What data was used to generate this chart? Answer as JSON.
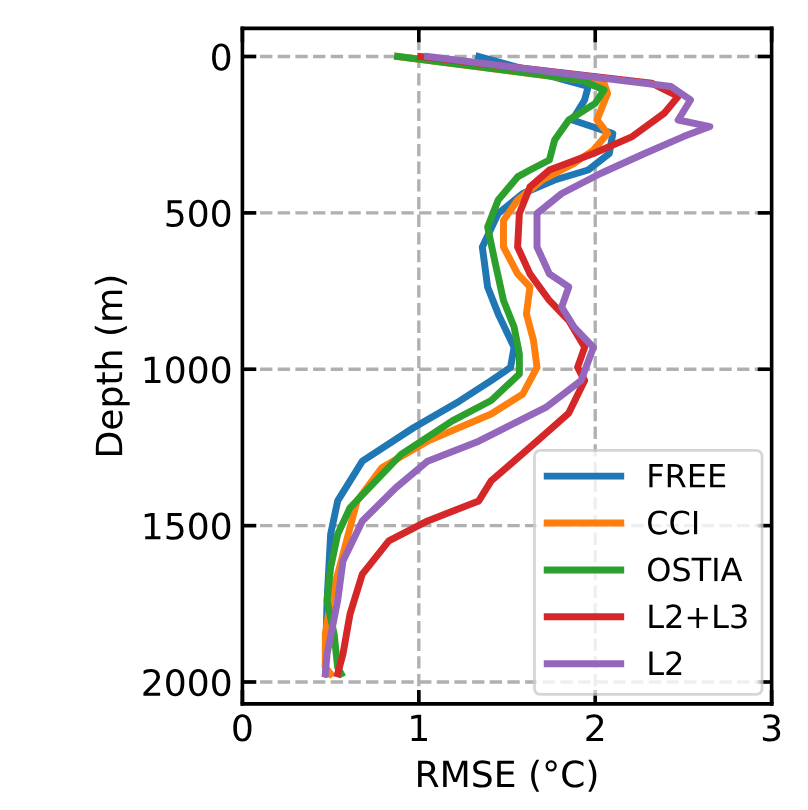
{
  "chart_data": {
    "type": "line",
    "xlabel": "RMSE (°C)",
    "ylabel": "Depth (m)",
    "xlim": [
      0,
      3
    ],
    "xticks": [
      0,
      1,
      2,
      3
    ],
    "ylim": [
      2070,
      -90
    ],
    "yticks": [
      0,
      500,
      1000,
      1500,
      2000
    ],
    "grid": true,
    "legend": "bottom right",
    "series": [
      {
        "name": "FREE",
        "color": "#1f77b4",
        "x": [
          1.34,
          1.96,
          1.94,
          1.87,
          2.1,
          2.08,
          1.96,
          1.77,
          1.59,
          1.45,
          1.36,
          1.39,
          1.45,
          1.54,
          1.52,
          1.41,
          1.23,
          0.97,
          0.68,
          0.54,
          0.5,
          0.48,
          0.47,
          0.48
        ],
        "values": [
          0,
          96,
          139,
          203,
          246,
          310,
          363,
          395,
          438,
          502,
          609,
          737,
          823,
          930,
          994,
          1036,
          1102,
          1187,
          1294,
          1421,
          1528,
          1740,
          1953,
          1974
        ]
      },
      {
        "name": "CCI",
        "color": "#ff7f0e",
        "x": [
          0.88,
          2.05,
          2.07,
          2.01,
          2.07,
          1.99,
          1.88,
          1.7,
          1.56,
          1.48,
          1.48,
          1.56,
          1.63,
          1.61,
          1.65,
          1.67,
          1.59,
          1.41,
          1.05,
          0.79,
          0.65,
          0.57,
          0.5,
          0.47,
          0.47,
          0.5
        ],
        "values": [
          0,
          85,
          118,
          203,
          246,
          299,
          342,
          395,
          459,
          524,
          609,
          695,
          737,
          823,
          908,
          994,
          1079,
          1143,
          1230,
          1315,
          1421,
          1592,
          1740,
          1847,
          1953,
          1974
        ]
      },
      {
        "name": "OSTIA",
        "color": "#2ca02c",
        "x": [
          0.88,
          1.92,
          2.05,
          2.0,
          1.85,
          1.77,
          1.74,
          1.63,
          1.56,
          1.45,
          1.39,
          1.43,
          1.48,
          1.54,
          1.57,
          1.57,
          1.41,
          1.19,
          0.9,
          0.61,
          0.54,
          0.5,
          0.48,
          0.52,
          0.54,
          0.56
        ],
        "values": [
          0,
          75,
          107,
          150,
          203,
          267,
          331,
          363,
          385,
          459,
          545,
          652,
          780,
          865,
          951,
          1015,
          1100,
          1165,
          1272,
          1443,
          1528,
          1634,
          1740,
          1847,
          1953,
          1974
        ]
      },
      {
        "name": "L2+L3",
        "color": "#d62728",
        "x": [
          1.01,
          2.32,
          2.47,
          2.39,
          2.21,
          1.99,
          1.74,
          1.63,
          1.57,
          1.56,
          1.63,
          1.74,
          1.85,
          1.94,
          1.9,
          1.94,
          1.85,
          1.67,
          1.41,
          1.34,
          1.05,
          0.83,
          0.68,
          0.61,
          0.57,
          0.54
        ],
        "values": [
          0,
          85,
          128,
          182,
          256,
          310,
          363,
          417,
          502,
          609,
          695,
          780,
          844,
          930,
          994,
          1036,
          1140,
          1230,
          1357,
          1421,
          1485,
          1549,
          1655,
          1783,
          1911,
          1974
        ]
      },
      {
        "name": "L2",
        "color": "#9467bd",
        "x": [
          1.05,
          2.43,
          2.54,
          2.47,
          2.65,
          2.5,
          2.28,
          2.03,
          1.81,
          1.67,
          1.67,
          1.74,
          1.85,
          1.81,
          1.88,
          1.99,
          1.92,
          1.72,
          1.34,
          1.05,
          0.87,
          0.68,
          0.57,
          0.54,
          0.48,
          0.47
        ],
        "values": [
          0,
          96,
          139,
          203,
          224,
          256,
          310,
          374,
          438,
          502,
          609,
          695,
          737,
          801,
          865,
          930,
          1036,
          1122,
          1230,
          1294,
          1379,
          1485,
          1613,
          1740,
          1911,
          1974
        ]
      }
    ]
  }
}
